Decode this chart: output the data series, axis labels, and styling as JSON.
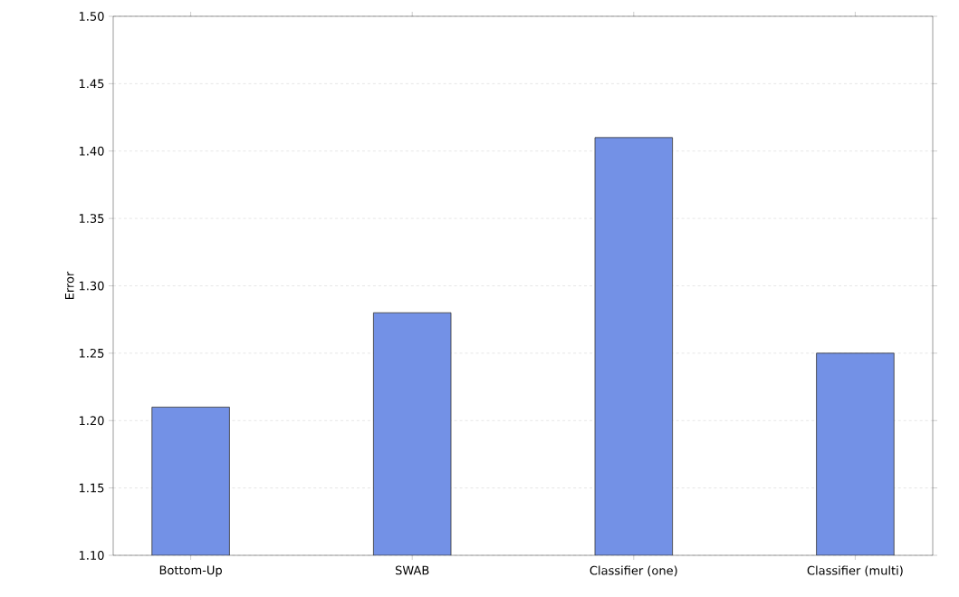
{
  "chart_data": {
    "type": "bar",
    "ylabel": "Error",
    "categories": [
      "Bottom-Up",
      "SWAB",
      "Classifier (one)",
      "Classifier (multi)"
    ],
    "values": [
      1.21,
      1.28,
      1.41,
      1.25
    ],
    "color": "#7391e6",
    "ylim": [
      1.1,
      1.5
    ],
    "yticks": [
      {
        "value": 1.1,
        "label": "1.10"
      },
      {
        "value": 1.15,
        "label": "1.15"
      },
      {
        "value": 1.2,
        "label": "1.20"
      },
      {
        "value": 1.25,
        "label": "1.25"
      },
      {
        "value": 1.3,
        "label": "1.30"
      },
      {
        "value": 1.35,
        "label": "1.35"
      },
      {
        "value": 1.4,
        "label": "1.40"
      },
      {
        "value": 1.45,
        "label": "1.45"
      },
      {
        "value": 1.5,
        "label": "1.50"
      }
    ],
    "grid": "y"
  }
}
